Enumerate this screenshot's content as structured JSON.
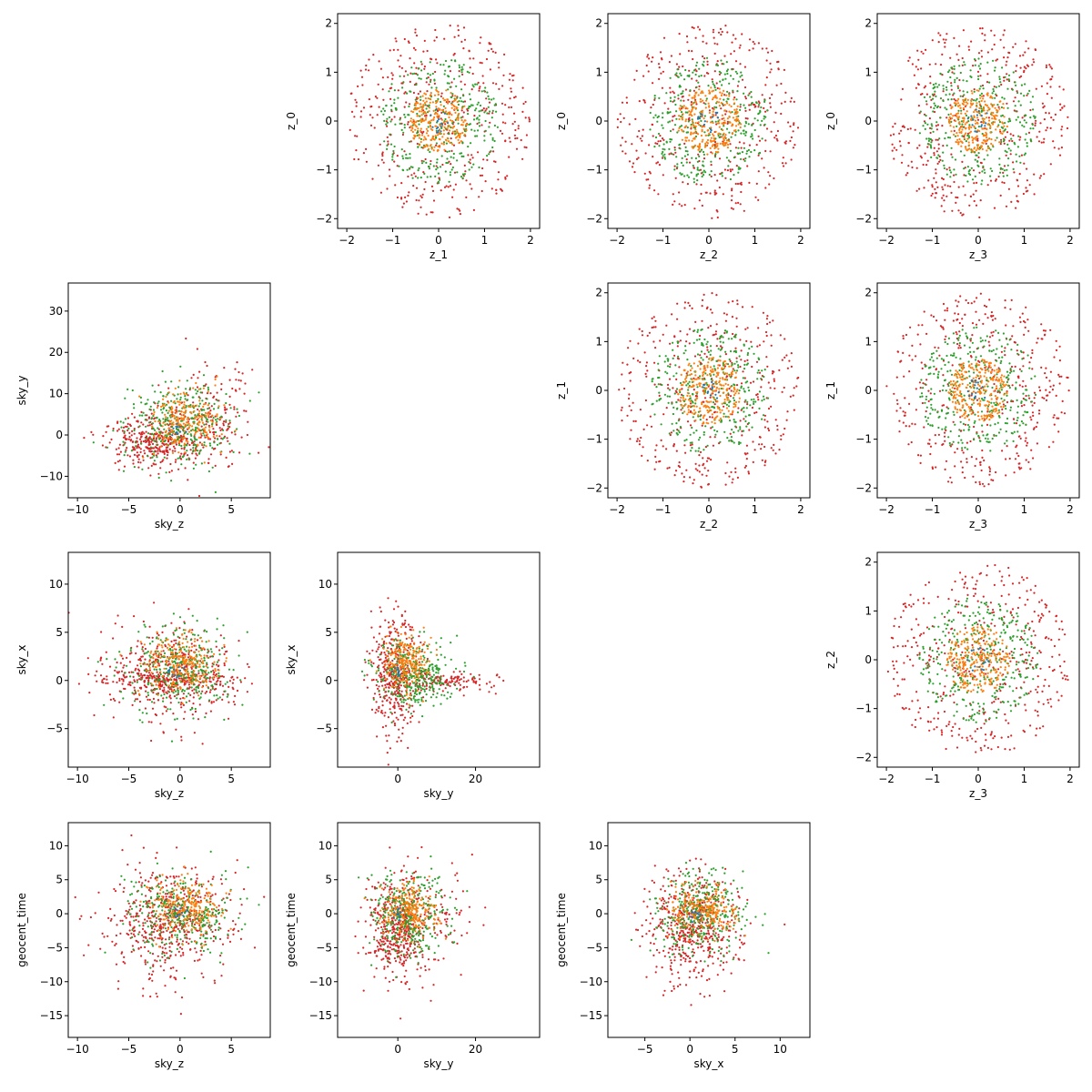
{
  "figure": {
    "type": "pairwise_scatter_grid",
    "grid": {
      "rows": 4,
      "cols": 4
    },
    "series_colors": [
      "#1f77b4",
      "#ff7f0e",
      "#2ca02c",
      "#d62728"
    ]
  },
  "chart_data": [
    {
      "id": "z1_vs_z0",
      "type": "scatter",
      "row": 0,
      "col": 1,
      "xlabel": "z_1",
      "ylabel": "z_0",
      "xlim": [
        -2.2,
        2.2
      ],
      "ylim": [
        -2.2,
        2.2
      ],
      "xticks": [
        -2,
        -1,
        0,
        1,
        2
      ],
      "yticks": [
        -2,
        -1,
        0,
        1,
        2
      ],
      "series": [
        {
          "color": "#d62728",
          "distribution": "uniform_disk",
          "center": [
            0,
            0
          ],
          "radius": 2.0,
          "count": 420
        },
        {
          "color": "#2ca02c",
          "distribution": "uniform_disk",
          "center": [
            0,
            0
          ],
          "radius": 1.3,
          "count": 340
        },
        {
          "color": "#ff7f0e",
          "distribution": "uniform_disk",
          "center": [
            0,
            0
          ],
          "radius": 0.65,
          "count": 260
        },
        {
          "color": "#1f77b4",
          "distribution": "uniform_disk",
          "center": [
            0,
            0
          ],
          "radius": 0.25,
          "count": 15
        }
      ]
    },
    {
      "id": "z2_vs_z0",
      "type": "scatter",
      "row": 0,
      "col": 2,
      "xlabel": "z_2",
      "ylabel": "z_0",
      "xlim": [
        -2.2,
        2.2
      ],
      "ylim": [
        -2.2,
        2.2
      ],
      "xticks": [
        -2,
        -1,
        0,
        1,
        2
      ],
      "yticks": [
        -2,
        -1,
        0,
        1,
        2
      ],
      "series": [
        {
          "color": "#d62728",
          "distribution": "uniform_disk",
          "center": [
            0,
            0
          ],
          "radius": 2.0,
          "count": 420
        },
        {
          "color": "#2ca02c",
          "distribution": "uniform_disk",
          "center": [
            0,
            0
          ],
          "radius": 1.3,
          "count": 340
        },
        {
          "color": "#ff7f0e",
          "distribution": "uniform_disk",
          "center": [
            0,
            0
          ],
          "radius": 0.7,
          "count": 260
        },
        {
          "color": "#1f77b4",
          "distribution": "uniform_disk",
          "center": [
            0,
            0
          ],
          "radius": 0.25,
          "count": 15
        }
      ]
    },
    {
      "id": "z3_vs_z0",
      "type": "scatter",
      "row": 0,
      "col": 3,
      "xlabel": "z_3",
      "ylabel": "z_0",
      "xlim": [
        -2.2,
        2.2
      ],
      "ylim": [
        -2.2,
        2.2
      ],
      "xticks": [
        -2,
        -1,
        0,
        1,
        2
      ],
      "yticks": [
        -2,
        -1,
        0,
        1,
        2
      ],
      "series": [
        {
          "color": "#d62728",
          "distribution": "uniform_disk",
          "center": [
            0,
            0
          ],
          "radius": 2.0,
          "count": 420
        },
        {
          "color": "#2ca02c",
          "distribution": "uniform_disk",
          "center": [
            0,
            0
          ],
          "radius": 1.3,
          "count": 340
        },
        {
          "color": "#ff7f0e",
          "distribution": "uniform_disk",
          "center": [
            0,
            0
          ],
          "radius": 0.65,
          "count": 260
        },
        {
          "color": "#1f77b4",
          "distribution": "uniform_disk",
          "center": [
            0,
            0
          ],
          "radius": 0.25,
          "count": 15
        }
      ]
    },
    {
      "id": "skyz_vs_skyy",
      "type": "scatter",
      "row": 1,
      "col": 0,
      "xlabel": "sky_z",
      "ylabel": "sky_y",
      "xlim": [
        -10.9,
        8.8
      ],
      "ylim": [
        -15.2,
        36.8
      ],
      "xticks": [
        -10,
        -5,
        0,
        5
      ],
      "yticks": [
        -10,
        0,
        10,
        20,
        30
      ],
      "series": [
        {
          "color": "#d62728",
          "distribution": "gaussian",
          "center": [
            -2.5,
            -1.5
          ],
          "sd": [
            2.3,
            3.0
          ],
          "count": 340
        },
        {
          "color": "#d62728",
          "distribution": "gaussian",
          "center": [
            3.0,
            4.0
          ],
          "sd": [
            2.2,
            7.0
          ],
          "count": 180
        },
        {
          "color": "#2ca02c",
          "distribution": "gaussian",
          "center": [
            0.0,
            2.5
          ],
          "sd": [
            2.6,
            5.5
          ],
          "count": 330
        },
        {
          "color": "#ff7f0e",
          "distribution": "gaussian",
          "center": [
            0.5,
            3.0
          ],
          "sd": [
            1.6,
            4.0
          ],
          "count": 230
        },
        {
          "color": "#1f77b4",
          "distribution": "gaussian",
          "center": [
            0.0,
            1.0
          ],
          "sd": [
            0.5,
            0.8
          ],
          "count": 12
        }
      ]
    },
    {
      "id": "z2_vs_z1",
      "type": "scatter",
      "row": 1,
      "col": 2,
      "xlabel": "z_2",
      "ylabel": "z_1",
      "xlim": [
        -2.2,
        2.2
      ],
      "ylim": [
        -2.2,
        2.2
      ],
      "xticks": [
        -2,
        -1,
        0,
        1,
        2
      ],
      "yticks": [
        -2,
        -1,
        0,
        1,
        2
      ],
      "series": [
        {
          "color": "#d62728",
          "distribution": "uniform_disk",
          "center": [
            0,
            0
          ],
          "radius": 2.0,
          "count": 420
        },
        {
          "color": "#2ca02c",
          "distribution": "uniform_disk",
          "center": [
            0,
            0
          ],
          "radius": 1.3,
          "count": 340
        },
        {
          "color": "#ff7f0e",
          "distribution": "uniform_disk",
          "center": [
            0,
            0
          ],
          "radius": 0.7,
          "count": 260
        },
        {
          "color": "#1f77b4",
          "distribution": "uniform_disk",
          "center": [
            0,
            0
          ],
          "radius": 0.25,
          "count": 15
        }
      ]
    },
    {
      "id": "z3_vs_z1",
      "type": "scatter",
      "row": 1,
      "col": 3,
      "xlabel": "z_3",
      "ylabel": "z_1",
      "xlim": [
        -2.2,
        2.2
      ],
      "ylim": [
        -2.2,
        2.2
      ],
      "xticks": [
        -2,
        -1,
        0,
        1,
        2
      ],
      "yticks": [
        -2,
        -1,
        0,
        1,
        2
      ],
      "series": [
        {
          "color": "#d62728",
          "distribution": "uniform_disk",
          "center": [
            0,
            0
          ],
          "radius": 2.0,
          "count": 420
        },
        {
          "color": "#2ca02c",
          "distribution": "uniform_disk",
          "center": [
            0,
            0
          ],
          "radius": 1.3,
          "count": 340
        },
        {
          "color": "#ff7f0e",
          "distribution": "uniform_disk",
          "center": [
            0,
            0
          ],
          "radius": 0.65,
          "count": 260
        },
        {
          "color": "#1f77b4",
          "distribution": "uniform_disk",
          "center": [
            0,
            0
          ],
          "radius": 0.25,
          "count": 15
        }
      ]
    },
    {
      "id": "skyz_vs_skyx",
      "type": "scatter",
      "row": 2,
      "col": 0,
      "xlabel": "sky_z",
      "ylabel": "sky_x",
      "xlim": [
        -10.9,
        8.8
      ],
      "ylim": [
        -9.0,
        13.3
      ],
      "xticks": [
        -10,
        -5,
        0,
        5
      ],
      "yticks": [
        -5,
        0,
        5,
        10
      ],
      "series": [
        {
          "color": "#d62728",
          "distribution": "gaussian",
          "center": [
            -1.0,
            0.5
          ],
          "sd": [
            3.2,
            2.6
          ],
          "count": 420
        },
        {
          "color": "#d62728",
          "distribution": "gaussian",
          "center": [
            -1.0,
            0.0
          ],
          "sd": [
            3.5,
            0.5
          ],
          "count": 160
        },
        {
          "color": "#2ca02c",
          "distribution": "gaussian",
          "center": [
            0.0,
            1.0
          ],
          "sd": [
            2.6,
            2.2
          ],
          "count": 330
        },
        {
          "color": "#ff7f0e",
          "distribution": "gaussian",
          "center": [
            0.0,
            1.8
          ],
          "sd": [
            1.8,
            1.4
          ],
          "count": 230
        },
        {
          "color": "#1f77b4",
          "distribution": "gaussian",
          "center": [
            -0.5,
            1.0
          ],
          "sd": [
            0.5,
            0.5
          ],
          "count": 12
        }
      ]
    },
    {
      "id": "skyy_vs_skyx",
      "type": "scatter",
      "row": 2,
      "col": 1,
      "xlabel": "sky_y",
      "ylabel": "sky_x",
      "xlim": [
        -15.5,
        36.5
      ],
      "ylim": [
        -9.0,
        13.3
      ],
      "xticks": [
        0,
        20
      ],
      "yticks": [
        -5,
        0,
        5,
        10
      ],
      "series": [
        {
          "color": "#d62728",
          "distribution": "gaussian",
          "center": [
            -1.0,
            0.5
          ],
          "sd": [
            3.0,
            3.0
          ],
          "count": 380
        },
        {
          "color": "#d62728",
          "distribution": "gaussian",
          "center": [
            12.0,
            0.0
          ],
          "sd": [
            7.0,
            0.5
          ],
          "count": 140
        },
        {
          "color": "#2ca02c",
          "distribution": "gaussian",
          "center": [
            4.0,
            0.5
          ],
          "sd": [
            5.0,
            1.8
          ],
          "count": 330
        },
        {
          "color": "#ff7f0e",
          "distribution": "gaussian",
          "center": [
            2.0,
            1.8
          ],
          "sd": [
            3.0,
            1.5
          ],
          "count": 230
        },
        {
          "color": "#1f77b4",
          "distribution": "gaussian",
          "center": [
            0.0,
            1.0
          ],
          "sd": [
            0.5,
            0.5
          ],
          "count": 12
        }
      ]
    },
    {
      "id": "z3_vs_z2",
      "type": "scatter",
      "row": 2,
      "col": 3,
      "xlabel": "z_3",
      "ylabel": "z_2",
      "xlim": [
        -2.2,
        2.2
      ],
      "ylim": [
        -2.2,
        2.2
      ],
      "xticks": [
        -2,
        -1,
        0,
        1,
        2
      ],
      "yticks": [
        -2,
        -1,
        0,
        1,
        2
      ],
      "series": [
        {
          "color": "#d62728",
          "distribution": "uniform_disk",
          "center": [
            0,
            0
          ],
          "radius": 2.0,
          "count": 420
        },
        {
          "color": "#2ca02c",
          "distribution": "uniform_disk",
          "center": [
            0,
            0
          ],
          "radius": 1.3,
          "count": 340
        },
        {
          "color": "#ff7f0e",
          "distribution": "uniform_disk",
          "center": [
            0,
            0
          ],
          "radius": 0.7,
          "count": 260
        },
        {
          "color": "#1f77b4",
          "distribution": "uniform_disk",
          "center": [
            0,
            0
          ],
          "radius": 0.25,
          "count": 15
        }
      ]
    },
    {
      "id": "skyz_vs_geocent",
      "type": "scatter",
      "row": 3,
      "col": 0,
      "xlabel": "sky_z",
      "ylabel": "geocent_time",
      "xlim": [
        -10.9,
        8.8
      ],
      "ylim": [
        -18.2,
        13.4
      ],
      "xticks": [
        -10,
        -5,
        0,
        5
      ],
      "yticks": [
        -15,
        -10,
        -5,
        0,
        5,
        10
      ],
      "series": [
        {
          "color": "#d62728",
          "distribution": "gaussian",
          "center": [
            -1.0,
            -1.5
          ],
          "sd": [
            3.0,
            4.0
          ],
          "count": 520
        },
        {
          "color": "#2ca02c",
          "distribution": "gaussian",
          "center": [
            0.0,
            0.0
          ],
          "sd": [
            2.5,
            3.0
          ],
          "count": 330
        },
        {
          "color": "#ff7f0e",
          "distribution": "gaussian",
          "center": [
            0.5,
            0.5
          ],
          "sd": [
            1.8,
            2.0
          ],
          "count": 230
        },
        {
          "color": "#1f77b4",
          "distribution": "gaussian",
          "center": [
            0.0,
            0.0
          ],
          "sd": [
            0.5,
            0.5
          ],
          "count": 12
        }
      ]
    },
    {
      "id": "skyy_vs_geocent",
      "type": "scatter",
      "row": 3,
      "col": 1,
      "xlabel": "sky_y",
      "ylabel": "geocent_time",
      "xlim": [
        -15.5,
        36.5
      ],
      "ylim": [
        -18.2,
        13.4
      ],
      "xticks": [
        0,
        20
      ],
      "yticks": [
        -15,
        -10,
        -5,
        0,
        5,
        10
      ],
      "series": [
        {
          "color": "#d62728",
          "distribution": "gaussian",
          "center": [
            0.0,
            -2.0
          ],
          "sd": [
            4.0,
            4.0
          ],
          "count": 440
        },
        {
          "color": "#d62728",
          "distribution": "gaussian",
          "center": [
            10.0,
            0.0
          ],
          "sd": [
            8.0,
            3.0
          ],
          "count": 80
        },
        {
          "color": "#2ca02c",
          "distribution": "gaussian",
          "center": [
            3.0,
            0.0
          ],
          "sd": [
            5.0,
            3.0
          ],
          "count": 330
        },
        {
          "color": "#ff7f0e",
          "distribution": "gaussian",
          "center": [
            3.0,
            0.5
          ],
          "sd": [
            3.5,
            2.0
          ],
          "count": 230
        },
        {
          "color": "#1f77b4",
          "distribution": "gaussian",
          "center": [
            0.0,
            0.0
          ],
          "sd": [
            0.5,
            0.5
          ],
          "count": 12
        }
      ]
    },
    {
      "id": "skyx_vs_geocent",
      "type": "scatter",
      "row": 3,
      "col": 2,
      "xlabel": "sky_x",
      "ylabel": "geocent_time",
      "xlim": [
        -9.1,
        13.3
      ],
      "ylim": [
        -18.2,
        13.4
      ],
      "xticks": [
        -5,
        0,
        5,
        10
      ],
      "yticks": [
        -15,
        -10,
        -5,
        0,
        5,
        10
      ],
      "series": [
        {
          "color": "#d62728",
          "distribution": "gaussian",
          "center": [
            0.0,
            -2.0
          ],
          "sd": [
            2.5,
            4.0
          ],
          "count": 520
        },
        {
          "color": "#2ca02c",
          "distribution": "gaussian",
          "center": [
            1.0,
            0.0
          ],
          "sd": [
            2.5,
            3.0
          ],
          "count": 330
        },
        {
          "color": "#ff7f0e",
          "distribution": "gaussian",
          "center": [
            1.5,
            0.5
          ],
          "sd": [
            1.8,
            1.8
          ],
          "count": 230
        },
        {
          "color": "#1f77b4",
          "distribution": "gaussian",
          "center": [
            0.5,
            0.0
          ],
          "sd": [
            0.5,
            0.5
          ],
          "count": 12
        }
      ]
    }
  ]
}
